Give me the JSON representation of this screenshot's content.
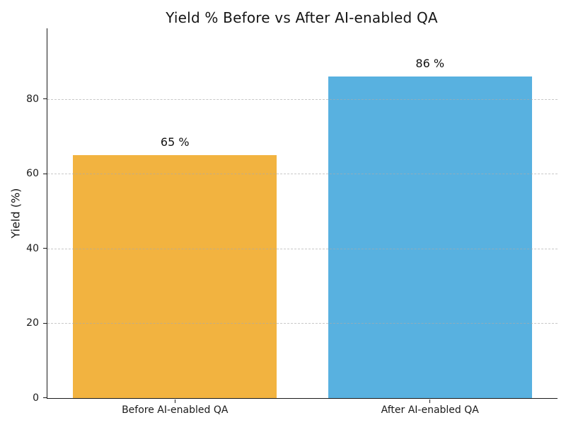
{
  "chart_data": {
    "type": "bar",
    "title": "Yield % Before vs After AI-enabled QA",
    "xlabel": "",
    "ylabel": "Yield (%)",
    "categories": [
      "Before AI-enabled QA",
      "After AI-enabled QA"
    ],
    "values": [
      65,
      86
    ],
    "bar_labels": [
      "65 %",
      "86 %"
    ],
    "bar_colors": [
      "#F2B340",
      "#58B1E0"
    ],
    "yticks": [
      0,
      20,
      40,
      60,
      80
    ],
    "ylim": [
      0,
      98.9
    ],
    "grid": "horizontal dashed gridlines at y-ticks, drawn over bars",
    "grid_color": "#ababab",
    "axis_color": "#1a1a1a",
    "background": "#ffffff",
    "legend": "none",
    "bar_width_fraction": 0.8
  }
}
